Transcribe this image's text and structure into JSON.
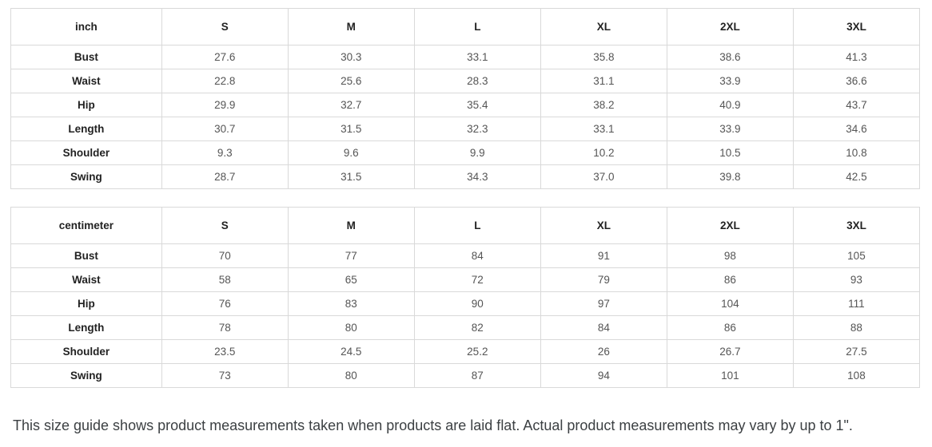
{
  "tables": [
    {
      "unit_label": "inch",
      "columns": [
        "S",
        "M",
        "L",
        "XL",
        "2XL",
        "3XL"
      ],
      "rows": [
        {
          "label": "Bust",
          "values": [
            "27.6",
            "30.3",
            "33.1",
            "35.8",
            "38.6",
            "41.3"
          ]
        },
        {
          "label": "Waist",
          "values": [
            "22.8",
            "25.6",
            "28.3",
            "31.1",
            "33.9",
            "36.6"
          ]
        },
        {
          "label": "Hip",
          "values": [
            "29.9",
            "32.7",
            "35.4",
            "38.2",
            "40.9",
            "43.7"
          ]
        },
        {
          "label": "Length",
          "values": [
            "30.7",
            "31.5",
            "32.3",
            "33.1",
            "33.9",
            "34.6"
          ]
        },
        {
          "label": "Shoulder",
          "values": [
            "9.3",
            "9.6",
            "9.9",
            "10.2",
            "10.5",
            "10.8"
          ]
        },
        {
          "label": "Swing",
          "values": [
            "28.7",
            "31.5",
            "34.3",
            "37.0",
            "39.8",
            "42.5"
          ]
        }
      ]
    },
    {
      "unit_label": "centimeter",
      "columns": [
        "S",
        "M",
        "L",
        "XL",
        "2XL",
        "3XL"
      ],
      "rows": [
        {
          "label": "Bust",
          "values": [
            "70",
            "77",
            "84",
            "91",
            "98",
            "105"
          ]
        },
        {
          "label": "Waist",
          "values": [
            "58",
            "65",
            "72",
            "79",
            "86",
            "93"
          ]
        },
        {
          "label": "Hip",
          "values": [
            "76",
            "83",
            "90",
            "97",
            "104",
            "111"
          ]
        },
        {
          "label": "Length",
          "values": [
            "78",
            "80",
            "82",
            "84",
            "86",
            "88"
          ]
        },
        {
          "label": "Shoulder",
          "values": [
            "23.5",
            "24.5",
            "25.2",
            "26",
            "26.7",
            "27.5"
          ]
        },
        {
          "label": "Swing",
          "values": [
            "73",
            "80",
            "87",
            "94",
            "101",
            "108"
          ]
        }
      ]
    }
  ],
  "footer": {
    "note": "This size guide shows product measurements taken when products are laid flat. Actual product measurements may vary by up to 1\"."
  },
  "colors": {
    "background": "#ffffff",
    "table_border": "#d9d9d9",
    "header_text": "#222222",
    "value_text": "#555555",
    "note_text": "#3c4043"
  }
}
